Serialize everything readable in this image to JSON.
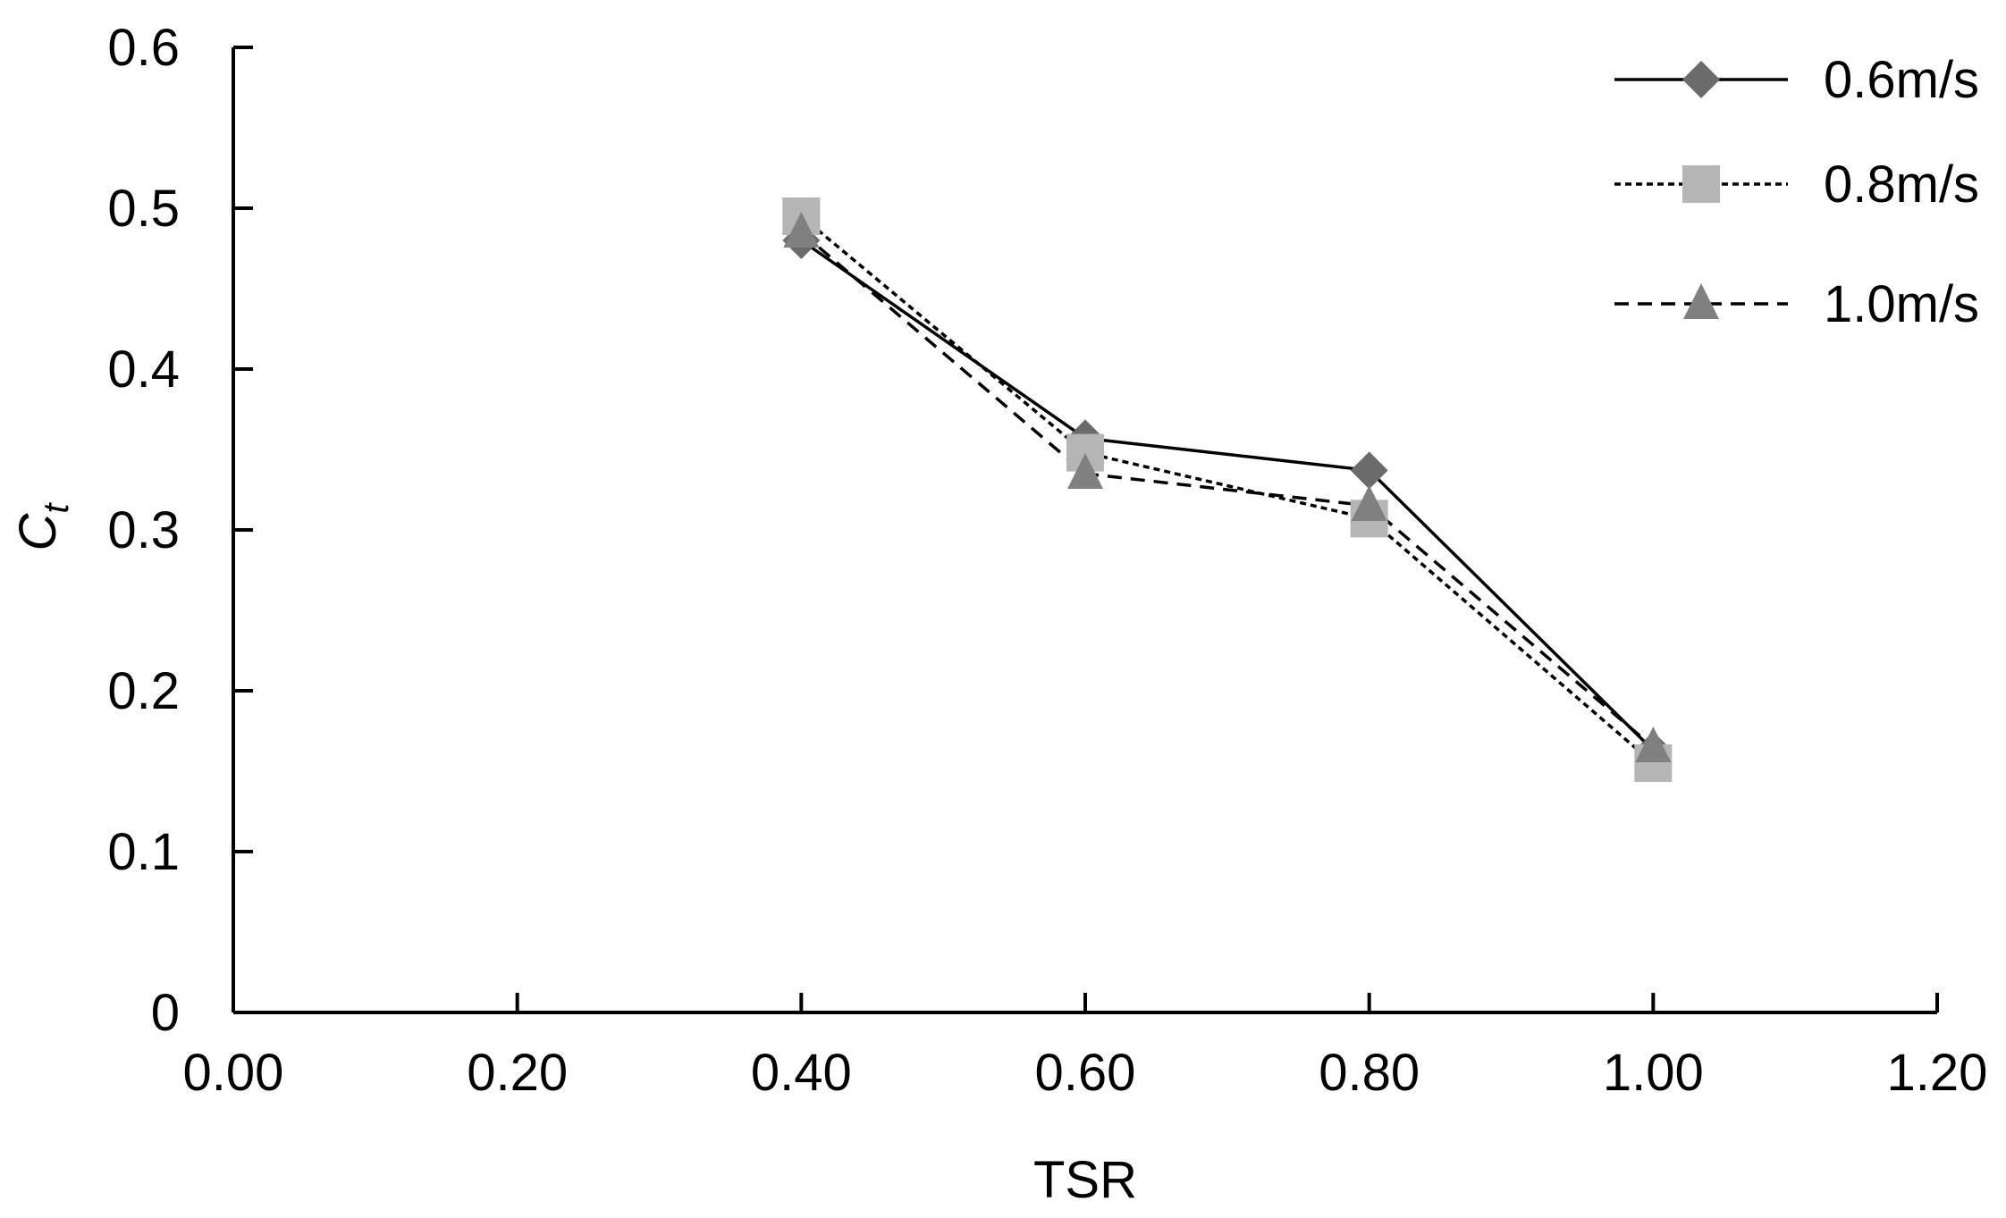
{
  "chart_data": {
    "type": "line",
    "xlabel": "TSR",
    "ylabel": {
      "main": "C",
      "sub": "t"
    },
    "xlim": [
      0,
      1.2
    ],
    "ylim": [
      0,
      0.6
    ],
    "xticks": [
      0,
      0.2,
      0.4,
      0.6,
      0.8,
      1.0,
      1.2
    ],
    "xtick_labels": [
      "0.00",
      "0.20",
      "0.40",
      "0.60",
      "0.80",
      "1.00",
      "1.20"
    ],
    "yticks": [
      0,
      0.1,
      0.2,
      0.3,
      0.4,
      0.5,
      0.6
    ],
    "ytick_labels": [
      "0",
      "0.1",
      "0.2",
      "0.3",
      "0.4",
      "0.5",
      "0.6"
    ],
    "grid": false,
    "legend_position": "top-right",
    "series": [
      {
        "name": "0.6m/s",
        "x": [
          0.4,
          0.6,
          0.8,
          1.0
        ],
        "y": [
          0.48,
          0.357,
          0.337,
          0.163
        ],
        "marker": "diamond",
        "line": "solid",
        "color": "#6b6b6b"
      },
      {
        "name": "0.8m/s",
        "x": [
          0.4,
          0.6,
          0.8,
          1.0
        ],
        "y": [
          0.495,
          0.348,
          0.307,
          0.155
        ],
        "marker": "square",
        "line": "dotted",
        "color": "#b5b5b5"
      },
      {
        "name": "1.0m/s",
        "x": [
          0.4,
          0.6,
          0.8,
          1.0
        ],
        "y": [
          0.485,
          0.335,
          0.315,
          0.165
        ],
        "marker": "triangle",
        "line": "dashed",
        "color": "#808080"
      }
    ]
  }
}
